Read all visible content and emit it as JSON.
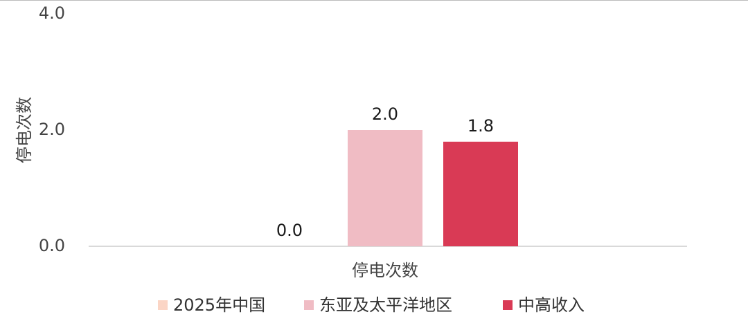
{
  "chart_data": {
    "type": "bar",
    "y_label": "停电次数",
    "categories": [
      "停电次数"
    ],
    "series": [
      {
        "name": "2025年中国",
        "color": "#fbd5c5",
        "values": [
          0
        ],
        "value_labels": [
          "0.0"
        ]
      },
      {
        "name": "东亚及太平洋地区",
        "color": "#f0bcc4",
        "values": [
          2
        ],
        "value_labels": [
          "2.0"
        ]
      },
      {
        "name": "中高收入",
        "color": "#d93a55",
        "values": [
          1.8
        ],
        "value_labels": [
          "1.8"
        ]
      }
    ],
    "ylim": [
      0,
      4
    ],
    "yticks": [
      {
        "value": 0,
        "label": "0.0"
      },
      {
        "value": 2,
        "label": "2.0"
      },
      {
        "value": 4,
        "label": "4.0"
      }
    ],
    "legend": "bottom"
  }
}
